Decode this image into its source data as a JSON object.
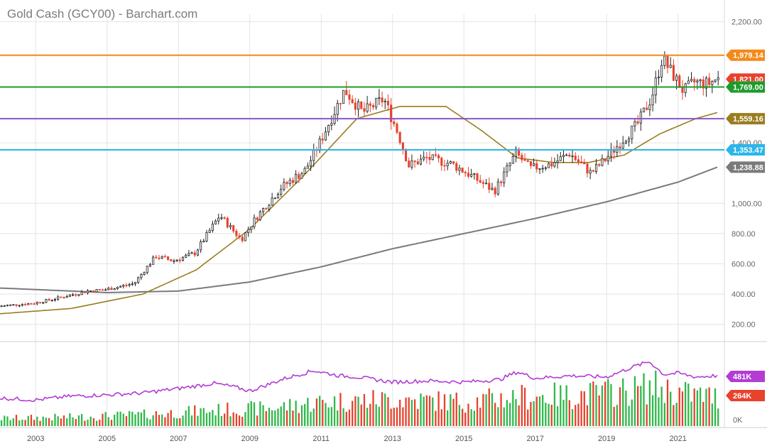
{
  "title": "Gold Cash (GCY00) - Barchart.com",
  "colors": {
    "up_candle": "#1f1f1f",
    "down_candle": "#e8412c",
    "ma_short": "#9a7d1f",
    "ma_long": "#7a7a7a",
    "volume_line": "#b23cd4",
    "volume_up": "#2fb84a",
    "volume_down": "#e8412c",
    "grid": "#e4e4e4"
  },
  "chart_data": {
    "type": "candlestick",
    "title": "Gold Cash (GCY00) - Barchart.com",
    "price_axis": {
      "ticks": [
        "2,200.00",
        "1,400.00",
        "1,000.00",
        "800.00",
        "600.00",
        "400.00",
        "200.00"
      ],
      "tick_values": [
        2200,
        1400,
        1000,
        800,
        600,
        400,
        200
      ],
      "ylim": [
        100,
        2250
      ]
    },
    "volume_axis": {
      "ticks": [
        "0K"
      ]
    },
    "x_axis": {
      "ticks": [
        "2003",
        "2005",
        "2007",
        "2009",
        "2011",
        "2013",
        "2015",
        "2017",
        "2019",
        "2021"
      ],
      "xlim": [
        2002.0,
        2022.3
      ]
    },
    "horizontal_lines": [
      {
        "label": "1,979.14",
        "value": 1979.14,
        "color": "#f28a1a"
      },
      {
        "label": "1,769.00",
        "value": 1769.0,
        "color": "#1e9b2a"
      },
      {
        "label": "1,559.16",
        "value": 1559.16,
        "color": "#8a55c8"
      },
      {
        "label": "1,353.47",
        "value": 1353.47,
        "color": "#2bb6ea"
      }
    ],
    "price_tags": [
      {
        "label": "1,979.14",
        "value": 1979.14,
        "color": "#f28a1a"
      },
      {
        "label": "1,821.00",
        "value": 1821.0,
        "color": "#e8412c"
      },
      {
        "label": "1,769.00",
        "value": 1769.0,
        "color": "#1e9b2a"
      },
      {
        "label": "1,559.16",
        "value": 1559.16,
        "color": "#9a7d1f"
      },
      {
        "label": "1,353.47",
        "value": 1353.47,
        "color": "#2bb6ea"
      },
      {
        "label": "1,238.88",
        "value": 1238.88,
        "color": "#7a7a7a"
      }
    ],
    "volume_tags": [
      {
        "label": "481K",
        "color": "#b23cd4"
      },
      {
        "label": "264K",
        "color": "#e8412c"
      }
    ],
    "price_anchors": [
      [
        2002.0,
        320
      ],
      [
        2003.0,
        340
      ],
      [
        2003.6,
        370
      ],
      [
        2004.5,
        420
      ],
      [
        2005.0,
        430
      ],
      [
        2005.8,
        470
      ],
      [
        2006.4,
        650
      ],
      [
        2006.9,
        620
      ],
      [
        2007.5,
        670
      ],
      [
        2008.2,
        920
      ],
      [
        2008.8,
        760
      ],
      [
        2009.2,
        900
      ],
      [
        2009.9,
        1100
      ],
      [
        2010.6,
        1220
      ],
      [
        2011.0,
        1400
      ],
      [
        2011.7,
        1750
      ],
      [
        2012.2,
        1600
      ],
      [
        2012.8,
        1690
      ],
      [
        2013.2,
        1460
      ],
      [
        2013.5,
        1250
      ],
      [
        2014.0,
        1300
      ],
      [
        2014.7,
        1260
      ],
      [
        2015.2,
        1190
      ],
      [
        2015.9,
        1080
      ],
      [
        2016.5,
        1330
      ],
      [
        2016.9,
        1230
      ],
      [
        2017.5,
        1260
      ],
      [
        2018.0,
        1330
      ],
      [
        2018.6,
        1200
      ],
      [
        2019.0,
        1290
      ],
      [
        2019.5,
        1420
      ],
      [
        2019.9,
        1520
      ],
      [
        2020.3,
        1700
      ],
      [
        2020.6,
        1960
      ],
      [
        2020.9,
        1850
      ],
      [
        2021.2,
        1740
      ],
      [
        2021.5,
        1800
      ],
      [
        2021.9,
        1790
      ],
      [
        2022.1,
        1821
      ]
    ],
    "ma_short_anchors": [
      [
        2002.0,
        270
      ],
      [
        2004.0,
        305
      ],
      [
        2006.0,
        400
      ],
      [
        2007.5,
        560
      ],
      [
        2009.0,
        830
      ],
      [
        2010.5,
        1180
      ],
      [
        2012.0,
        1560
      ],
      [
        2013.2,
        1640
      ],
      [
        2014.5,
        1640
      ],
      [
        2015.5,
        1480
      ],
      [
        2016.5,
        1300
      ],
      [
        2017.5,
        1270
      ],
      [
        2018.5,
        1270
      ],
      [
        2019.5,
        1320
      ],
      [
        2020.5,
        1460
      ],
      [
        2021.5,
        1560
      ],
      [
        2022.1,
        1600
      ]
    ],
    "ma_long_anchors": [
      [
        2002.0,
        440
      ],
      [
        2005.0,
        410
      ],
      [
        2007.0,
        420
      ],
      [
        2009.0,
        480
      ],
      [
        2011.0,
        580
      ],
      [
        2013.0,
        700
      ],
      [
        2015.0,
        800
      ],
      [
        2017.0,
        900
      ],
      [
        2019.0,
        1010
      ],
      [
        2021.0,
        1140
      ],
      [
        2022.1,
        1238.88
      ]
    ],
    "volume_line_anchors": [
      [
        2002.0,
        0.35
      ],
      [
        2003.0,
        0.32
      ],
      [
        2004.0,
        0.38
      ],
      [
        2005.0,
        0.4
      ],
      [
        2006.0,
        0.43
      ],
      [
        2007.0,
        0.5
      ],
      [
        2008.0,
        0.58
      ],
      [
        2008.6,
        0.52
      ],
      [
        2009.0,
        0.46
      ],
      [
        2010.0,
        0.66
      ],
      [
        2010.8,
        0.78
      ],
      [
        2011.5,
        0.7
      ],
      [
        2012.0,
        0.68
      ],
      [
        2013.0,
        0.6
      ],
      [
        2014.0,
        0.62
      ],
      [
        2015.0,
        0.6
      ],
      [
        2016.0,
        0.64
      ],
      [
        2016.5,
        0.76
      ],
      [
        2017.0,
        0.66
      ],
      [
        2018.0,
        0.7
      ],
      [
        2019.0,
        0.68
      ],
      [
        2019.8,
        0.85
      ],
      [
        2020.2,
        0.92
      ],
      [
        2020.6,
        0.72
      ],
      [
        2021.0,
        0.74
      ],
      [
        2021.5,
        0.68
      ],
      [
        2022.1,
        0.7
      ]
    ],
    "volume_bar_anchors": [
      [
        2002.0,
        0.12
      ],
      [
        2004.0,
        0.14
      ],
      [
        2006.0,
        0.18
      ],
      [
        2008.0,
        0.25
      ],
      [
        2009.5,
        0.28
      ],
      [
        2011.0,
        0.38
      ],
      [
        2013.0,
        0.42
      ],
      [
        2015.0,
        0.38
      ],
      [
        2016.5,
        0.46
      ],
      [
        2018.0,
        0.48
      ],
      [
        2019.5,
        0.55
      ],
      [
        2020.3,
        0.62
      ],
      [
        2021.0,
        0.52
      ],
      [
        2022.1,
        0.45
      ]
    ],
    "grid": true,
    "legend": "none"
  }
}
